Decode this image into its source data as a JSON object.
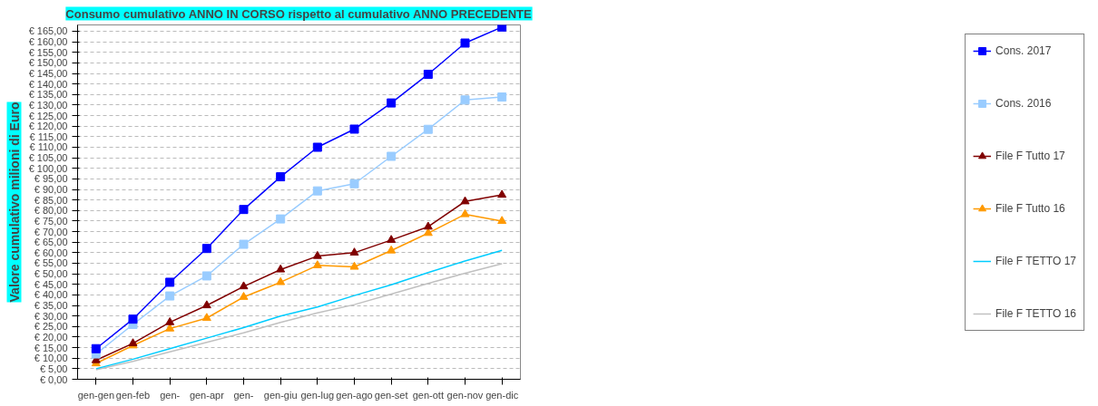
{
  "chart_data": {
    "type": "line",
    "title": "Consumo cumulativo ANNO IN CORSO rispetto al cumulativo ANNO PRECEDENTE",
    "ylabel": "Valore cumulativo milioni di Euro",
    "categories": [
      "gen-gen",
      "gen-feb",
      "gen-",
      "gen-apr",
      "gen-",
      "gen-giu",
      "gen-lug",
      "gen-ago",
      "gen-set",
      "gen-ott",
      "gen-nov",
      "gen-dic"
    ],
    "series": [
      {
        "name": "Cons. 2017",
        "color": "#0000ff",
        "marker": "square",
        "values": [
          14.5,
          28.5,
          46,
          62,
          80.5,
          96,
          110,
          118.6,
          131,
          144.6,
          159.4,
          167
        ]
      },
      {
        "name": "Cons. 2016",
        "color": "#99ccff",
        "marker": "square",
        "values": [
          12,
          26,
          39.5,
          49,
          64,
          76,
          89.3,
          92.7,
          105.7,
          118.5,
          132.4,
          133.8
        ]
      },
      {
        "name": "File F Tutto 17",
        "color": "#800000",
        "marker": "triangle",
        "values": [
          9,
          17,
          27,
          35,
          44,
          52,
          58.4,
          60,
          66,
          72.3,
          84.3,
          87.4
        ]
      },
      {
        "name": "File F Tutto 16",
        "color": "#ff9900",
        "marker": "triangle",
        "values": [
          7.5,
          16,
          24,
          29,
          39,
          46,
          54,
          53.3,
          61,
          69.3,
          78.2,
          75
        ]
      },
      {
        "name": "File F TETTO 17",
        "color": "#00ccff",
        "marker": "none",
        "values": [
          5,
          9.5,
          14.5,
          19.5,
          24.5,
          30,
          34.3,
          39.7,
          44.8,
          50.6,
          56.1,
          61.1
        ]
      },
      {
        "name": "File F TETTO 16",
        "color": "#c0c0c0",
        "marker": "none",
        "values": [
          4.5,
          8.5,
          13,
          17.5,
          22,
          27,
          31.5,
          35.4,
          40.4,
          45.4,
          50.3,
          54.8
        ]
      }
    ],
    "ylim": [
      0,
      168
    ],
    "yticks": [
      {
        "value": 0,
        "label": "€ 0,00"
      },
      {
        "value": 5,
        "label": "€ 5,00"
      },
      {
        "value": 10,
        "label": "€ 10,00"
      },
      {
        "value": 15,
        "label": "€ 15,00"
      },
      {
        "value": 20,
        "label": "€ 20,00"
      },
      {
        "value": 25,
        "label": "€ 25,00"
      },
      {
        "value": 30,
        "label": "€ 30,00"
      },
      {
        "value": 35,
        "label": "€ 35,00"
      },
      {
        "value": 40,
        "label": "€ 40,00"
      },
      {
        "value": 45,
        "label": "€ 45,00"
      },
      {
        "value": 50,
        "label": "€ 50,00"
      },
      {
        "value": 55,
        "label": "€ 55,00"
      },
      {
        "value": 60,
        "label": "€ 60,00"
      },
      {
        "value": 65,
        "label": "€ 65,00"
      },
      {
        "value": 70,
        "label": "€ 70,00"
      },
      {
        "value": 75,
        "label": "€ 75,00"
      },
      {
        "value": 80,
        "label": "€ 80,00"
      },
      {
        "value": 85,
        "label": "€ 85,00"
      },
      {
        "value": 90,
        "label": "€ 90,00"
      },
      {
        "value": 95,
        "label": "€ 95,00"
      },
      {
        "value": 100,
        "label": "€ 100,00"
      },
      {
        "value": 105,
        "label": "€ 105,00"
      },
      {
        "value": 110,
        "label": "€ 110,00"
      },
      {
        "value": 115,
        "label": "€ 115,00"
      },
      {
        "value": 120,
        "label": "€ 120,00"
      },
      {
        "value": 125,
        "label": "€ 125,00"
      },
      {
        "value": 130,
        "label": "€ 130,00"
      },
      {
        "value": 135,
        "label": "€ 135,00"
      },
      {
        "value": 140,
        "label": "€ 140,00"
      },
      {
        "value": 145,
        "label": "€ 145,00"
      },
      {
        "value": 150,
        "label": "€ 150,00"
      },
      {
        "value": 155,
        "label": "€ 155,00"
      },
      {
        "value": 160,
        "label": "€ 160,00"
      },
      {
        "value": 165,
        "label": "€ 165,00"
      }
    ],
    "grid": "y",
    "legend": "right",
    "line_style": "solid"
  }
}
